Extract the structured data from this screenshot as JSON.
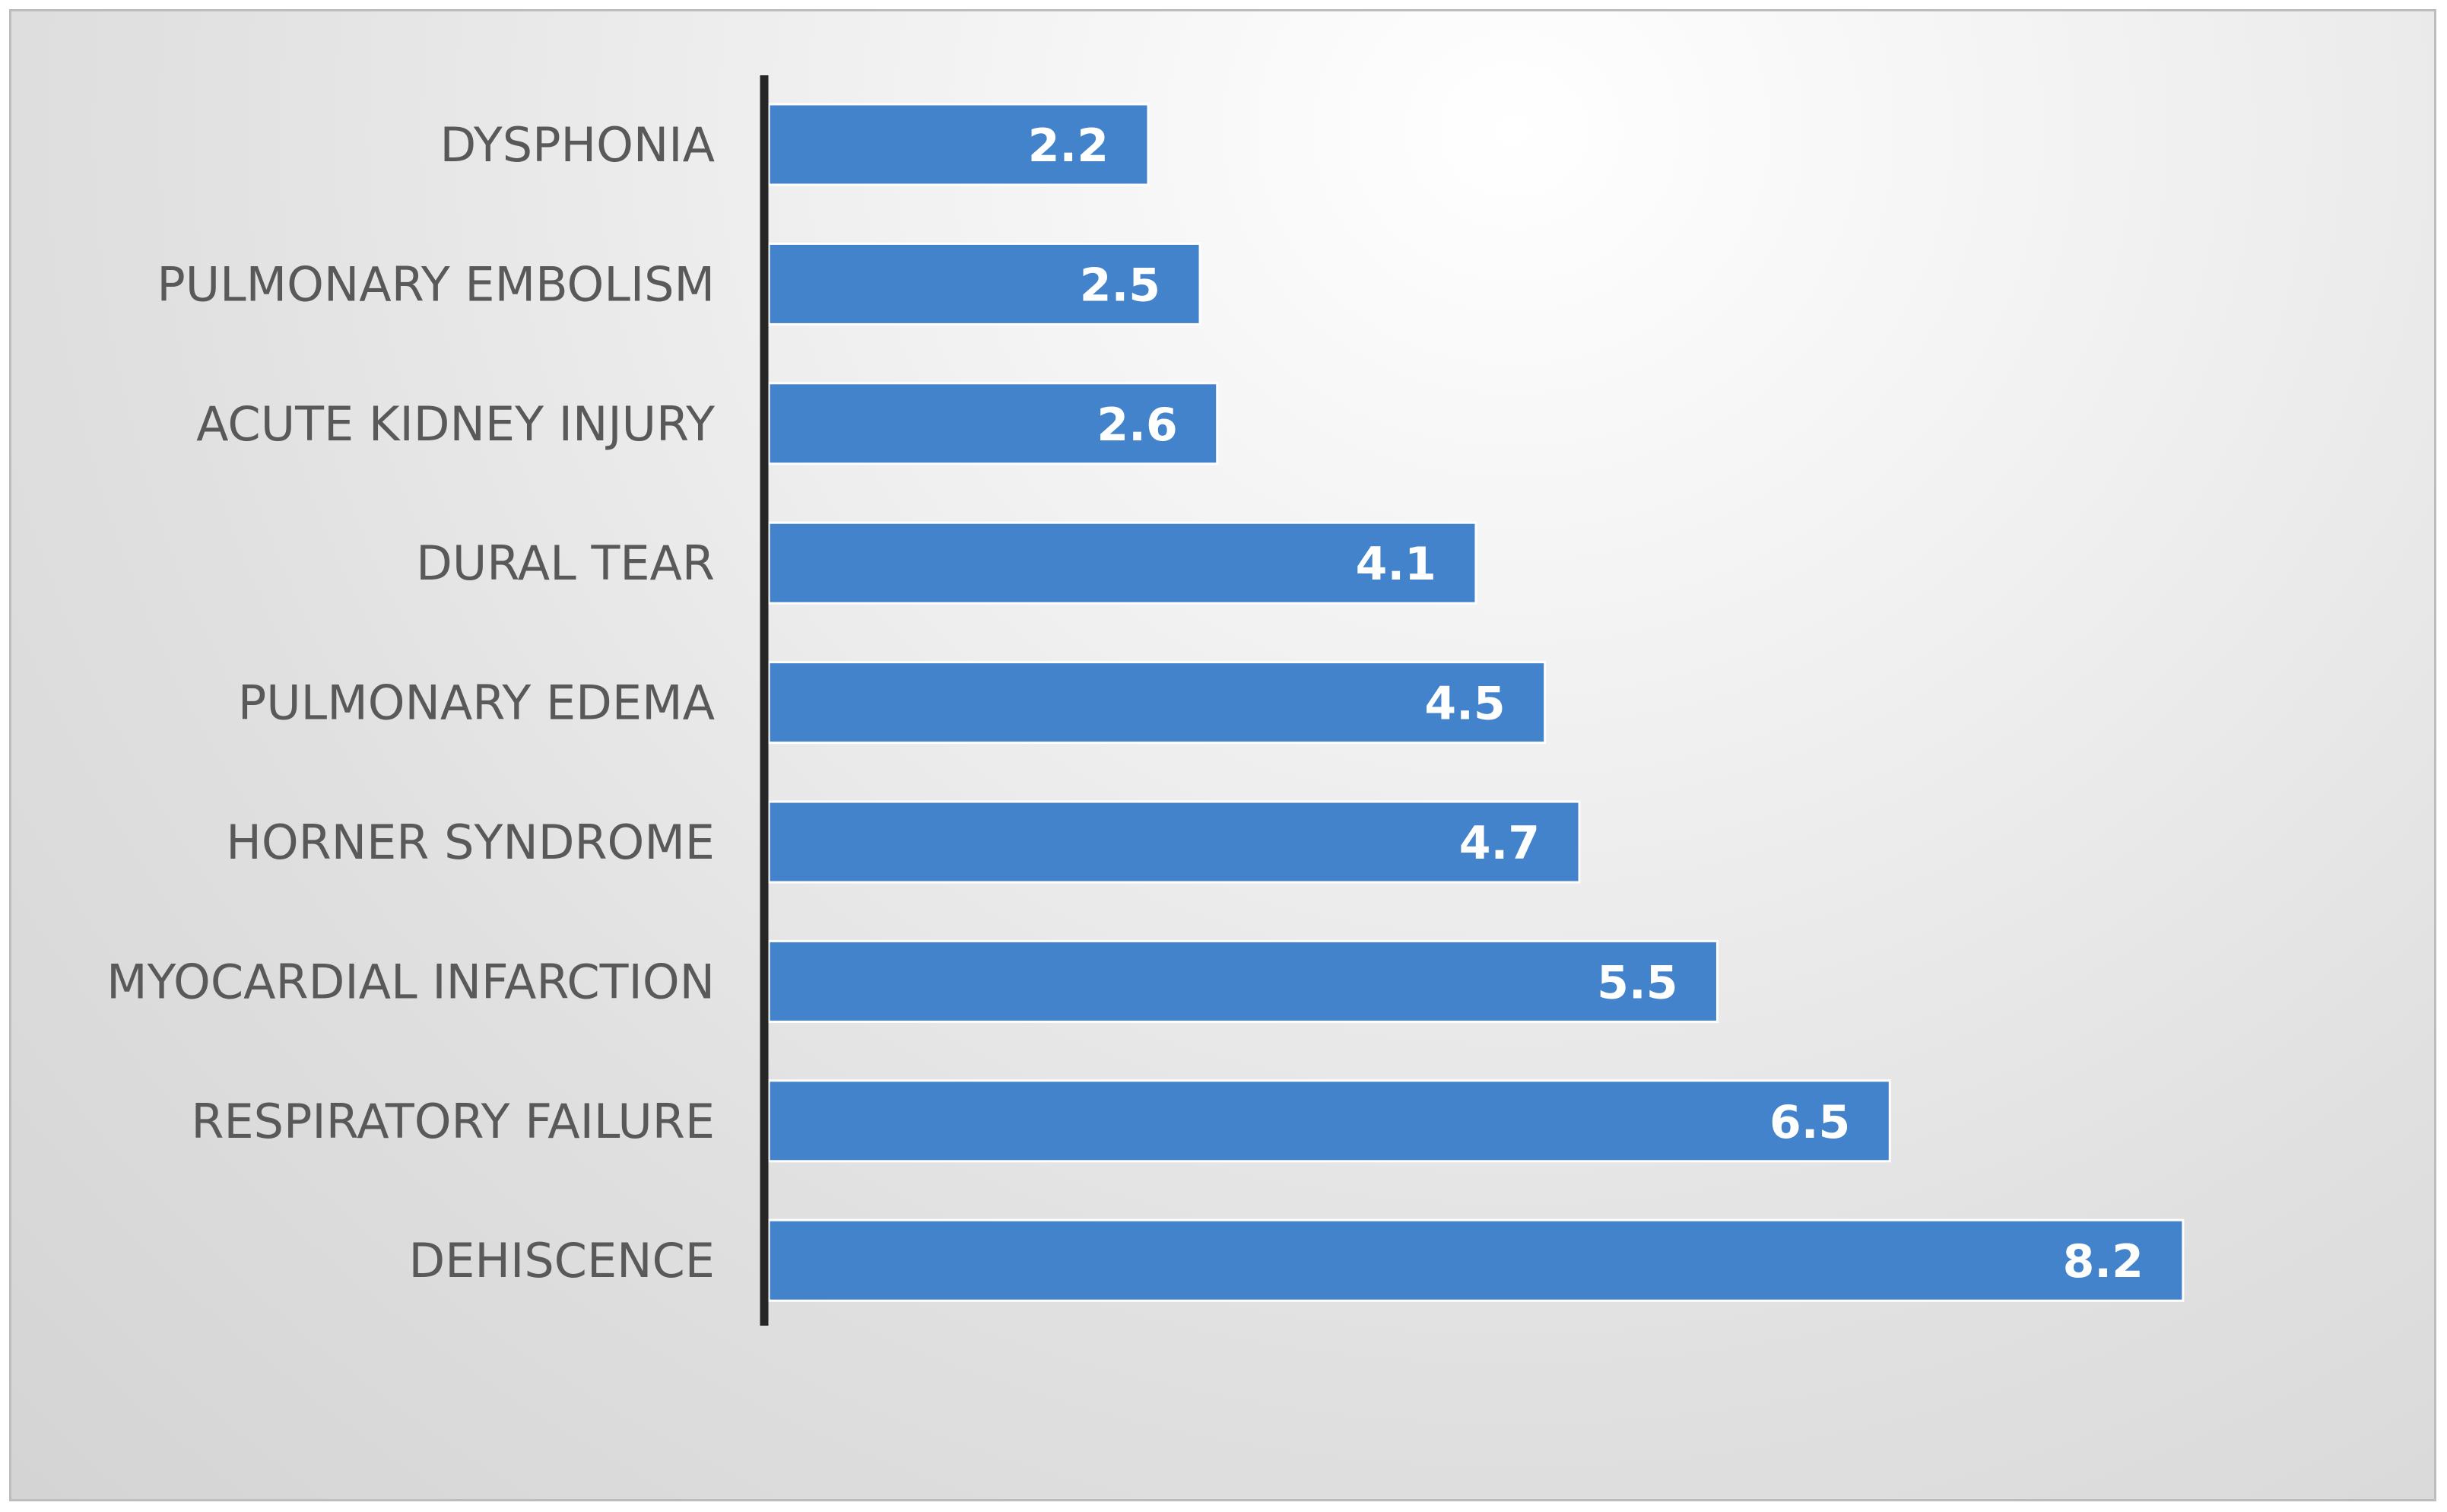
{
  "chart_data": {
    "type": "bar",
    "orientation": "horizontal",
    "categories": [
      "DYSPHONIA",
      "PULMONARY EMBOLISM",
      "ACUTE KIDNEY INJURY",
      "DURAL TEAR",
      "PULMONARY EDEMA",
      "HORNER SYNDROME",
      "MYOCARDIAL INFARCTION",
      "RESPIRATORY FAILURE",
      "DEHISCENCE"
    ],
    "values": [
      2.2,
      2.5,
      2.6,
      4.1,
      4.5,
      4.7,
      5.5,
      6.5,
      8.2
    ],
    "data_labels": [
      "2.2",
      "2.5",
      "2.6",
      "4.1",
      "4.5",
      "4.7",
      "5.5",
      "6.5",
      "8.2"
    ],
    "title": "",
    "xlabel": "",
    "ylabel": "",
    "xlim": [
      0,
      9.1
    ],
    "grid": false,
    "legend": "none",
    "bar_color": "#4383cc",
    "background": "gradient-gray"
  }
}
